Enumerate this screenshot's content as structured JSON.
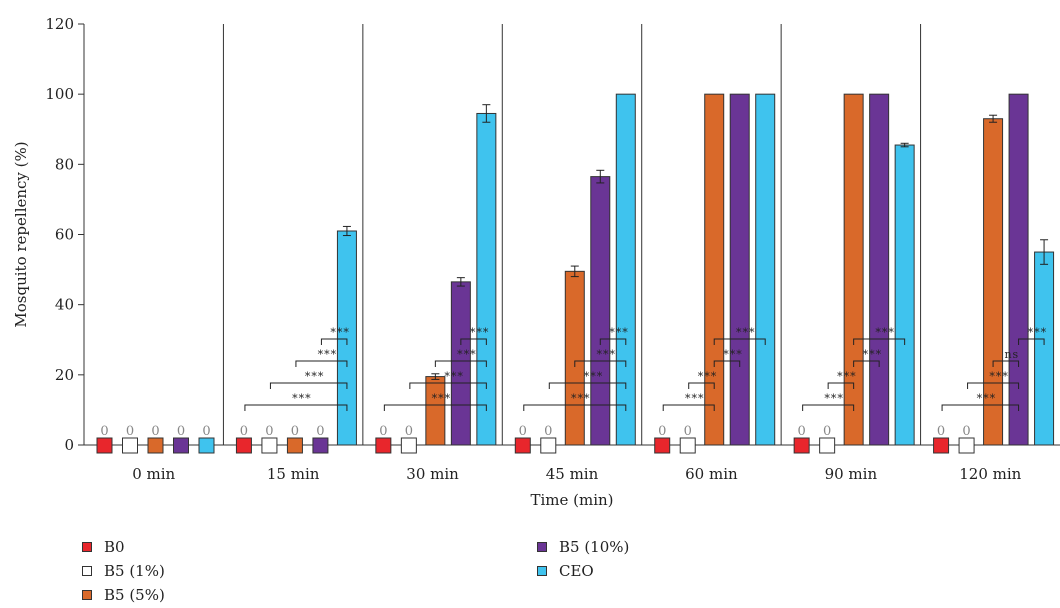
{
  "chart_data": {
    "type": "bar",
    "xlabel": "Time (min)",
    "ylabel": "Mosquito repellency (%)",
    "ylim": [
      0,
      120
    ],
    "yticks": [
      0,
      20,
      40,
      60,
      80,
      100,
      120
    ],
    "categories": [
      "0 min",
      "15 min",
      "30 min",
      "45 min",
      "60 min",
      "90 min",
      "120 min"
    ],
    "series": [
      {
        "name": "B0",
        "color": "#e8262c",
        "values": [
          0,
          0,
          0,
          0,
          0,
          0,
          0
        ],
        "errors": [
          0,
          0,
          0,
          0,
          0,
          0,
          0
        ]
      },
      {
        "name": "B5 (1%)",
        "color": "#ffffff",
        "values": [
          0,
          0,
          0,
          0,
          0,
          0,
          0
        ],
        "errors": [
          0,
          0,
          0,
          0,
          0,
          0,
          0
        ]
      },
      {
        "name": "B5 (5%)",
        "color": "#d9692a",
        "values": [
          0,
          0,
          19.5,
          49.5,
          100,
          100,
          93
        ],
        "errors": [
          0,
          0,
          0.8,
          1.5,
          0,
          0,
          1
        ]
      },
      {
        "name": "B5 (10%)",
        "color": "#6a3595",
        "values": [
          0,
          0,
          46.5,
          76.5,
          100,
          100,
          100
        ],
        "errors": [
          0,
          0,
          1.2,
          1.8,
          0,
          0,
          0
        ]
      },
      {
        "name": "CEO",
        "color": "#3fc3ee",
        "values": [
          0,
          61,
          94.5,
          100,
          100,
          85.5,
          55
        ],
        "errors": [
          0,
          1.3,
          2.5,
          0,
          0,
          0.5,
          3.5
        ]
      }
    ],
    "zero_label": "0",
    "significance_label": "***",
    "ns_label": "ns",
    "legend_position": "bottom",
    "grid": false
  },
  "legend": {
    "items": [
      {
        "label": "B0",
        "color": "#e8262c"
      },
      {
        "label": "B5 (1%)",
        "color": "#ffffff"
      },
      {
        "label": "B5 (5%)",
        "color": "#d9692a"
      },
      {
        "label": "B5 (10%)",
        "color": "#6a3595"
      },
      {
        "label": "CEO",
        "color": "#3fc3ee"
      }
    ]
  }
}
